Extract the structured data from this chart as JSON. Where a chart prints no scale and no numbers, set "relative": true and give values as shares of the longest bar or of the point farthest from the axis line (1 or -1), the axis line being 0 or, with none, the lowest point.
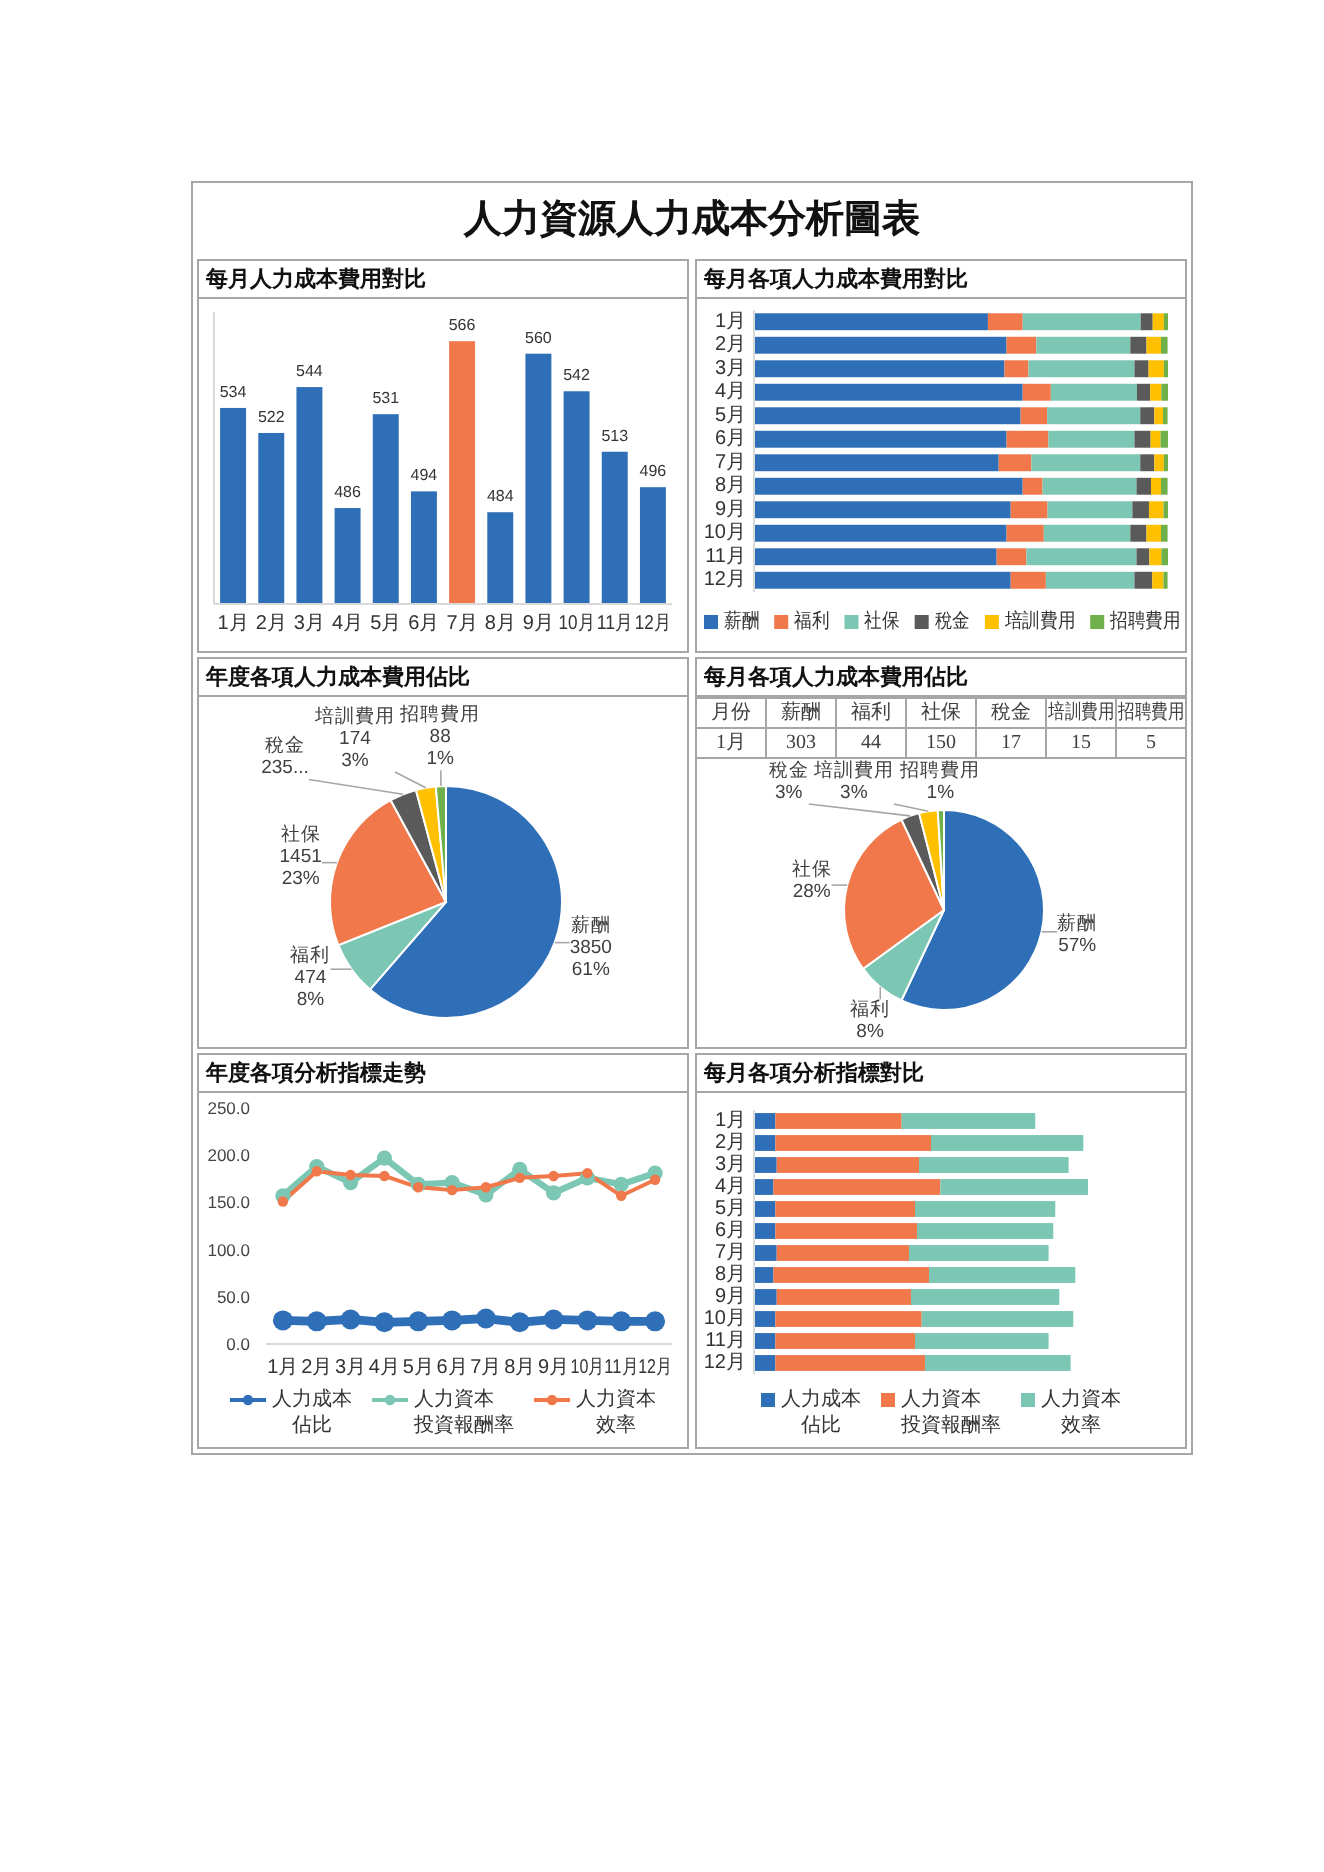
{
  "chart_data": [
    {
      "type": "other",
      "title": "人力資源人力成本分析圖表"
    },
    {
      "type": "bar",
      "title": "每月人力成本費用對比",
      "categories": [
        "1月",
        "2月",
        "3月",
        "4月",
        "5月",
        "6月",
        "7月",
        "8月",
        "9月",
        "10月",
        "11月",
        "12月"
      ],
      "values": [
        534,
        522,
        544,
        486,
        531,
        494,
        566,
        484,
        560,
        542,
        513,
        496
      ],
      "colors": [
        "#2f6fb7",
        "#2f6fb7",
        "#2f6fb7",
        "#2f6fb7",
        "#2f6fb7",
        "#2f6fb7",
        "#f0784a",
        "#2f6fb7",
        "#2f6fb7",
        "#2f6fb7",
        "#2f6fb7",
        "#2f6fb7"
      ],
      "ylim": [
        440,
        580
      ],
      "tick_labels": "x",
      "data_labels": true
    },
    {
      "type": "bar",
      "title": "每月各項人力成本費用對比",
      "orientation": "horizontal",
      "stacked": true,
      "relative": true,
      "legend": "bottom",
      "categories": [
        "1月",
        "2月",
        "3月",
        "4月",
        "5月",
        "6月",
        "7月",
        "8月",
        "9月",
        "10月",
        "11月",
        "12月"
      ],
      "series": [
        {
          "name": "薪酬",
          "color": "#2f6fb7",
          "values": [
            0.565,
            0.61,
            0.605,
            0.649,
            0.644,
            0.61,
            0.591,
            0.649,
            0.62,
            0.61,
            0.586,
            0.62
          ]
        },
        {
          "name": "福利",
          "color": "#f0784a",
          "values": [
            0.084,
            0.072,
            0.058,
            0.068,
            0.064,
            0.101,
            0.079,
            0.048,
            0.089,
            0.09,
            0.072,
            0.085
          ]
        },
        {
          "name": "社保",
          "color": "#7cc6b4",
          "values": [
            0.285,
            0.227,
            0.256,
            0.208,
            0.225,
            0.208,
            0.263,
            0.227,
            0.205,
            0.209,
            0.266,
            0.214
          ]
        },
        {
          "name": "稅金",
          "color": "#5a5a5a",
          "values": [
            0.029,
            0.039,
            0.034,
            0.032,
            0.034,
            0.039,
            0.034,
            0.035,
            0.04,
            0.039,
            0.031,
            0.043
          ]
        },
        {
          "name": "培訓費用",
          "color": "#ffc000",
          "values": [
            0.027,
            0.035,
            0.037,
            0.027,
            0.021,
            0.024,
            0.023,
            0.024,
            0.035,
            0.035,
            0.029,
            0.027
          ]
        },
        {
          "name": "招聘費用",
          "color": "#6fb04a",
          "values": [
            0.01,
            0.016,
            0.01,
            0.016,
            0.011,
            0.018,
            0.01,
            0.016,
            0.011,
            0.016,
            0.016,
            0.01
          ]
        }
      ]
    },
    {
      "type": "pie",
      "title": "年度各項人力成本費用佔比",
      "categories": [
        "薪酬",
        "福利",
        "社保",
        "稅金",
        "培訓費用",
        "招聘費用"
      ],
      "values": [
        3850,
        474,
        1451,
        235,
        174,
        88
      ],
      "colors": [
        "#2f6fb7",
        "#7cc6b4",
        "#f0784a",
        "#5a5a5a",
        "#ffc000",
        "#6fb04a"
      ],
      "value_labels": [
        "3850\n61%",
        "474\n8%",
        "1451\n23%",
        "235...",
        "174\n3%",
        "88\n1%"
      ]
    },
    {
      "type": "other",
      "title": "每月各項人力成本費用佔比",
      "annotations": [
        "月份",
        "薪酬",
        "福利",
        "社保",
        "稅金",
        "培訓費用",
        "招聘費用",
        "1月",
        "303",
        "44",
        "150",
        "17",
        "15",
        "5"
      ]
    },
    {
      "type": "pie",
      "categories": [
        "薪酬",
        "福利",
        "社保",
        "稅金",
        "培訓費用",
        "招聘費用"
      ],
      "values": [
        57,
        8,
        28,
        3,
        3,
        1
      ],
      "colors": [
        "#2f6fb7",
        "#7cc6b4",
        "#f0784a",
        "#5a5a5a",
        "#ffc000",
        "#6fb04a"
      ],
      "value_labels": [
        "57%",
        "8%",
        "28%",
        "3%",
        "3%",
        "1%"
      ]
    },
    {
      "type": "line",
      "title": "年度各項分析指標走勢",
      "marker": "circle",
      "legend": "bottom",
      "categories": [
        "1月",
        "2月",
        "3月",
        "4月",
        "5月",
        "6月",
        "7月",
        "8月",
        "9月",
        "10月",
        "11月",
        "12月"
      ],
      "ylim": [
        0,
        250
      ],
      "yticks": [
        {
          "value": 0,
          "label": "0.0"
        },
        {
          "value": 50,
          "label": "50.0"
        },
        {
          "value": 100,
          "label": "100.0"
        },
        {
          "value": 150,
          "label": "150.0"
        },
        {
          "value": 200,
          "label": "200.0"
        },
        {
          "value": 250,
          "label": "250.0"
        }
      ],
      "series": [
        {
          "name": "人力成本佔比",
          "color": "#2f6fb7",
          "values": [
            25,
            24,
            26,
            23,
            24,
            25,
            27,
            23,
            26,
            25,
            24,
            24
          ]
        },
        {
          "name": "人力資本投資報酬率",
          "color": "#7cc6b4",
          "values": [
            157,
            188,
            171,
            197,
            169,
            171,
            158,
            185,
            160,
            176,
            169,
            181
          ]
        },
        {
          "name": "人力資本效率",
          "color": "#f0784a",
          "values": [
            151,
            183,
            179,
            178,
            166,
            163,
            166,
            176,
            178,
            181,
            157,
            174
          ]
        }
      ]
    },
    {
      "type": "bar",
      "title": "每月各項分析指標對比",
      "orientation": "horizontal",
      "stacked": true,
      "relative": true,
      "legend": "bottom",
      "categories": [
        "1月",
        "2月",
        "3月",
        "4月",
        "5月",
        "6月",
        "7月",
        "8月",
        "9月",
        "10月",
        "11月",
        "12月"
      ],
      "series": [
        {
          "name": "人力成本佔比",
          "color": "#2f6fb7",
          "values": [
            0.064,
            0.064,
            0.068,
            0.058,
            0.064,
            0.064,
            0.068,
            0.058,
            0.068,
            0.064,
            0.064,
            0.064
          ]
        },
        {
          "name": "人力資本投資報酬率",
          "color": "#f0784a",
          "values": [
            0.378,
            0.466,
            0.426,
            0.5,
            0.418,
            0.424,
            0.396,
            0.466,
            0.402,
            0.438,
            0.418,
            0.448
          ]
        },
        {
          "name": "人力資本效率",
          "color": "#7cc6b4",
          "values": [
            0.4,
            0.456,
            0.448,
            0.442,
            0.42,
            0.408,
            0.418,
            0.438,
            0.444,
            0.454,
            0.4,
            0.436
          ]
        }
      ]
    }
  ]
}
